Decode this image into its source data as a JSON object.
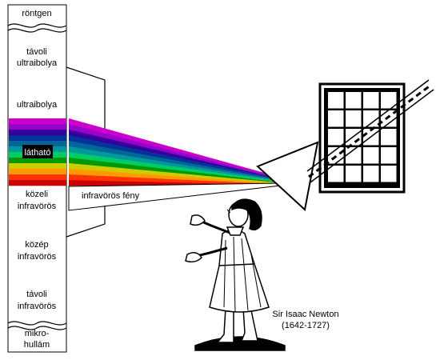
{
  "spectrum": {
    "bands": [
      {
        "key": "rontgen",
        "lines": [
          "röntgen"
        ]
      },
      {
        "key": "far_uv",
        "lines": [
          "távoli",
          "ultraibolya"
        ]
      },
      {
        "key": "uv",
        "lines": [
          "ultraibolya"
        ]
      },
      {
        "key": "visible",
        "lines": [
          "látható"
        ]
      },
      {
        "key": "near_ir",
        "lines": [
          "közeli",
          "infravörös"
        ]
      },
      {
        "key": "mid_ir",
        "lines": [
          "közép",
          "infravörös"
        ]
      },
      {
        "key": "far_ir",
        "lines": [
          "távoli",
          "infravörös"
        ]
      },
      {
        "key": "microwave",
        "lines": [
          "mikro-",
          "hullám"
        ]
      }
    ],
    "visible_colors": [
      "#cc00cc",
      "#9900cc",
      "#330099",
      "#003399",
      "#006699",
      "#009999",
      "#00cc66",
      "#009900",
      "#cccc00",
      "#ff9900",
      "#ff3300",
      "#cc0000"
    ]
  },
  "beam": {
    "ir_label": "infravörös fény"
  },
  "caption": {
    "name": "Sir Isaac Newton",
    "years": "(1642-1727)"
  }
}
